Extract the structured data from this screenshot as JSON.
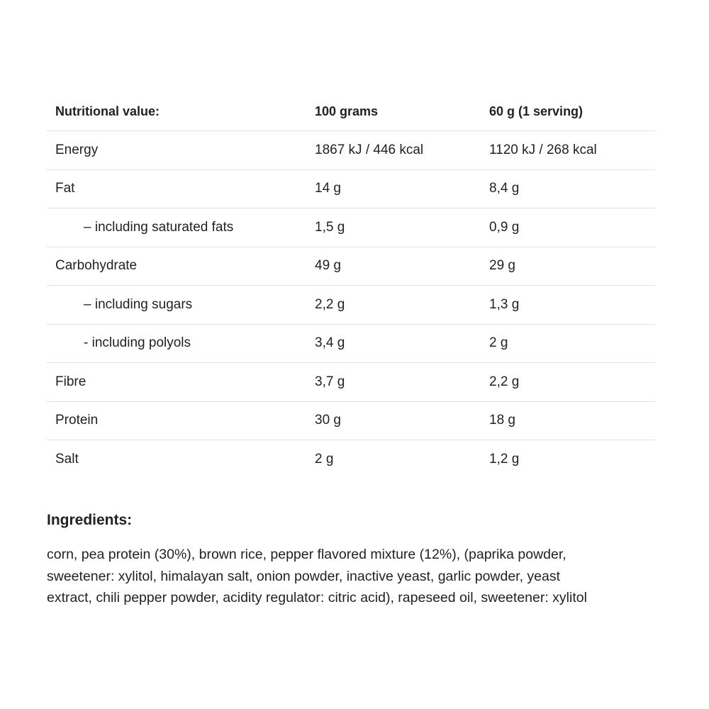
{
  "table": {
    "header": [
      "Nutritional value:",
      "100 grams",
      "60 g (1 serving)"
    ],
    "rows": [
      [
        "Energy",
        "1867 kJ / 446 kcal",
        "1120 kJ / 268 kcal"
      ],
      [
        "Fat",
        "14 g",
        "8,4 g"
      ],
      [
        "– including saturated fats",
        "1,5 g",
        "0,9 g"
      ],
      [
        "Carbohydrate",
        "49 g",
        "29 g"
      ],
      [
        "– including sugars",
        "2,2 g",
        "1,3 g"
      ],
      [
        "- including polyols",
        "3,4 g",
        "2 g"
      ],
      [
        "Fibre",
        "3,7 g",
        "2,2 g"
      ],
      [
        "Protein",
        "30 g",
        "18 g"
      ],
      [
        "Salt",
        "2 g",
        "1,2 g"
      ]
    ]
  },
  "ingredients": {
    "title": "Ingredients:",
    "lines": [
      "corn, pea protein (30%), brown rice, pepper flavored mixture (12%), (paprika powder,",
      "sweetener: xylitol, himalayan salt, onion powder, inactive yeast, garlic powder, yeast",
      "extract, chili pepper powder, acidity regulator: citric acid), rapeseed oil, sweetener: xylitol"
    ]
  }
}
